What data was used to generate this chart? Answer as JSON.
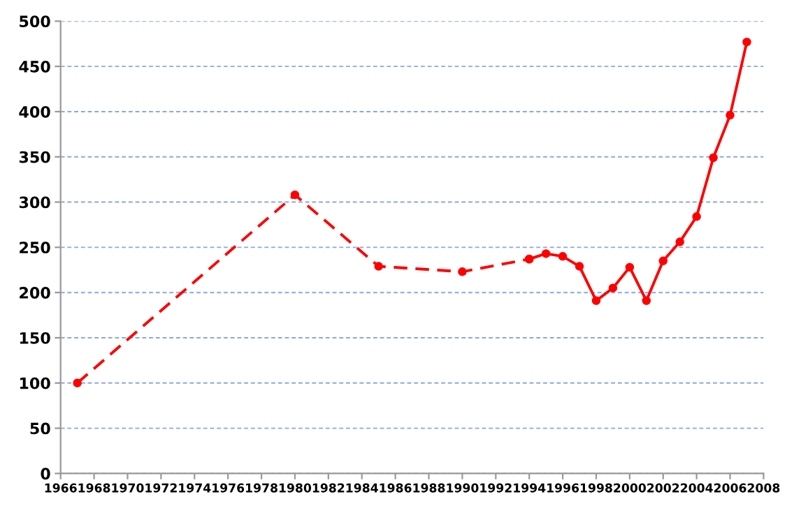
{
  "chart_data": {
    "type": "line",
    "series": [
      {
        "color": "#ff0000",
        "line_style": "dashed",
        "x": [
          1967,
          1980,
          1985,
          1990,
          1994
        ],
        "values": [
          100,
          308,
          229,
          223,
          237
        ]
      },
      {
        "color": "#ff0000",
        "line_style": "solid",
        "x": [
          1994,
          1995,
          1996,
          1997,
          1998,
          1999,
          2000,
          2001,
          2002,
          2003,
          2004,
          2005,
          2006,
          2007
        ],
        "values": [
          237,
          243,
          240,
          229,
          191,
          205,
          228,
          191,
          235,
          256,
          284,
          349,
          396,
          477
        ]
      }
    ],
    "marker": "circle",
    "xlim": [
      1966,
      2008
    ],
    "xticks": [
      1966,
      1968,
      1970,
      1972,
      1974,
      1976,
      1978,
      1980,
      1982,
      1984,
      1986,
      1988,
      1990,
      1992,
      1994,
      1996,
      1998,
      2000,
      2002,
      2004,
      2006,
      2008
    ],
    "ylim": [
      0,
      500
    ],
    "yticks": [
      0,
      50,
      100,
      150,
      200,
      250,
      300,
      350,
      400,
      450,
      500
    ],
    "grid": "y"
  }
}
